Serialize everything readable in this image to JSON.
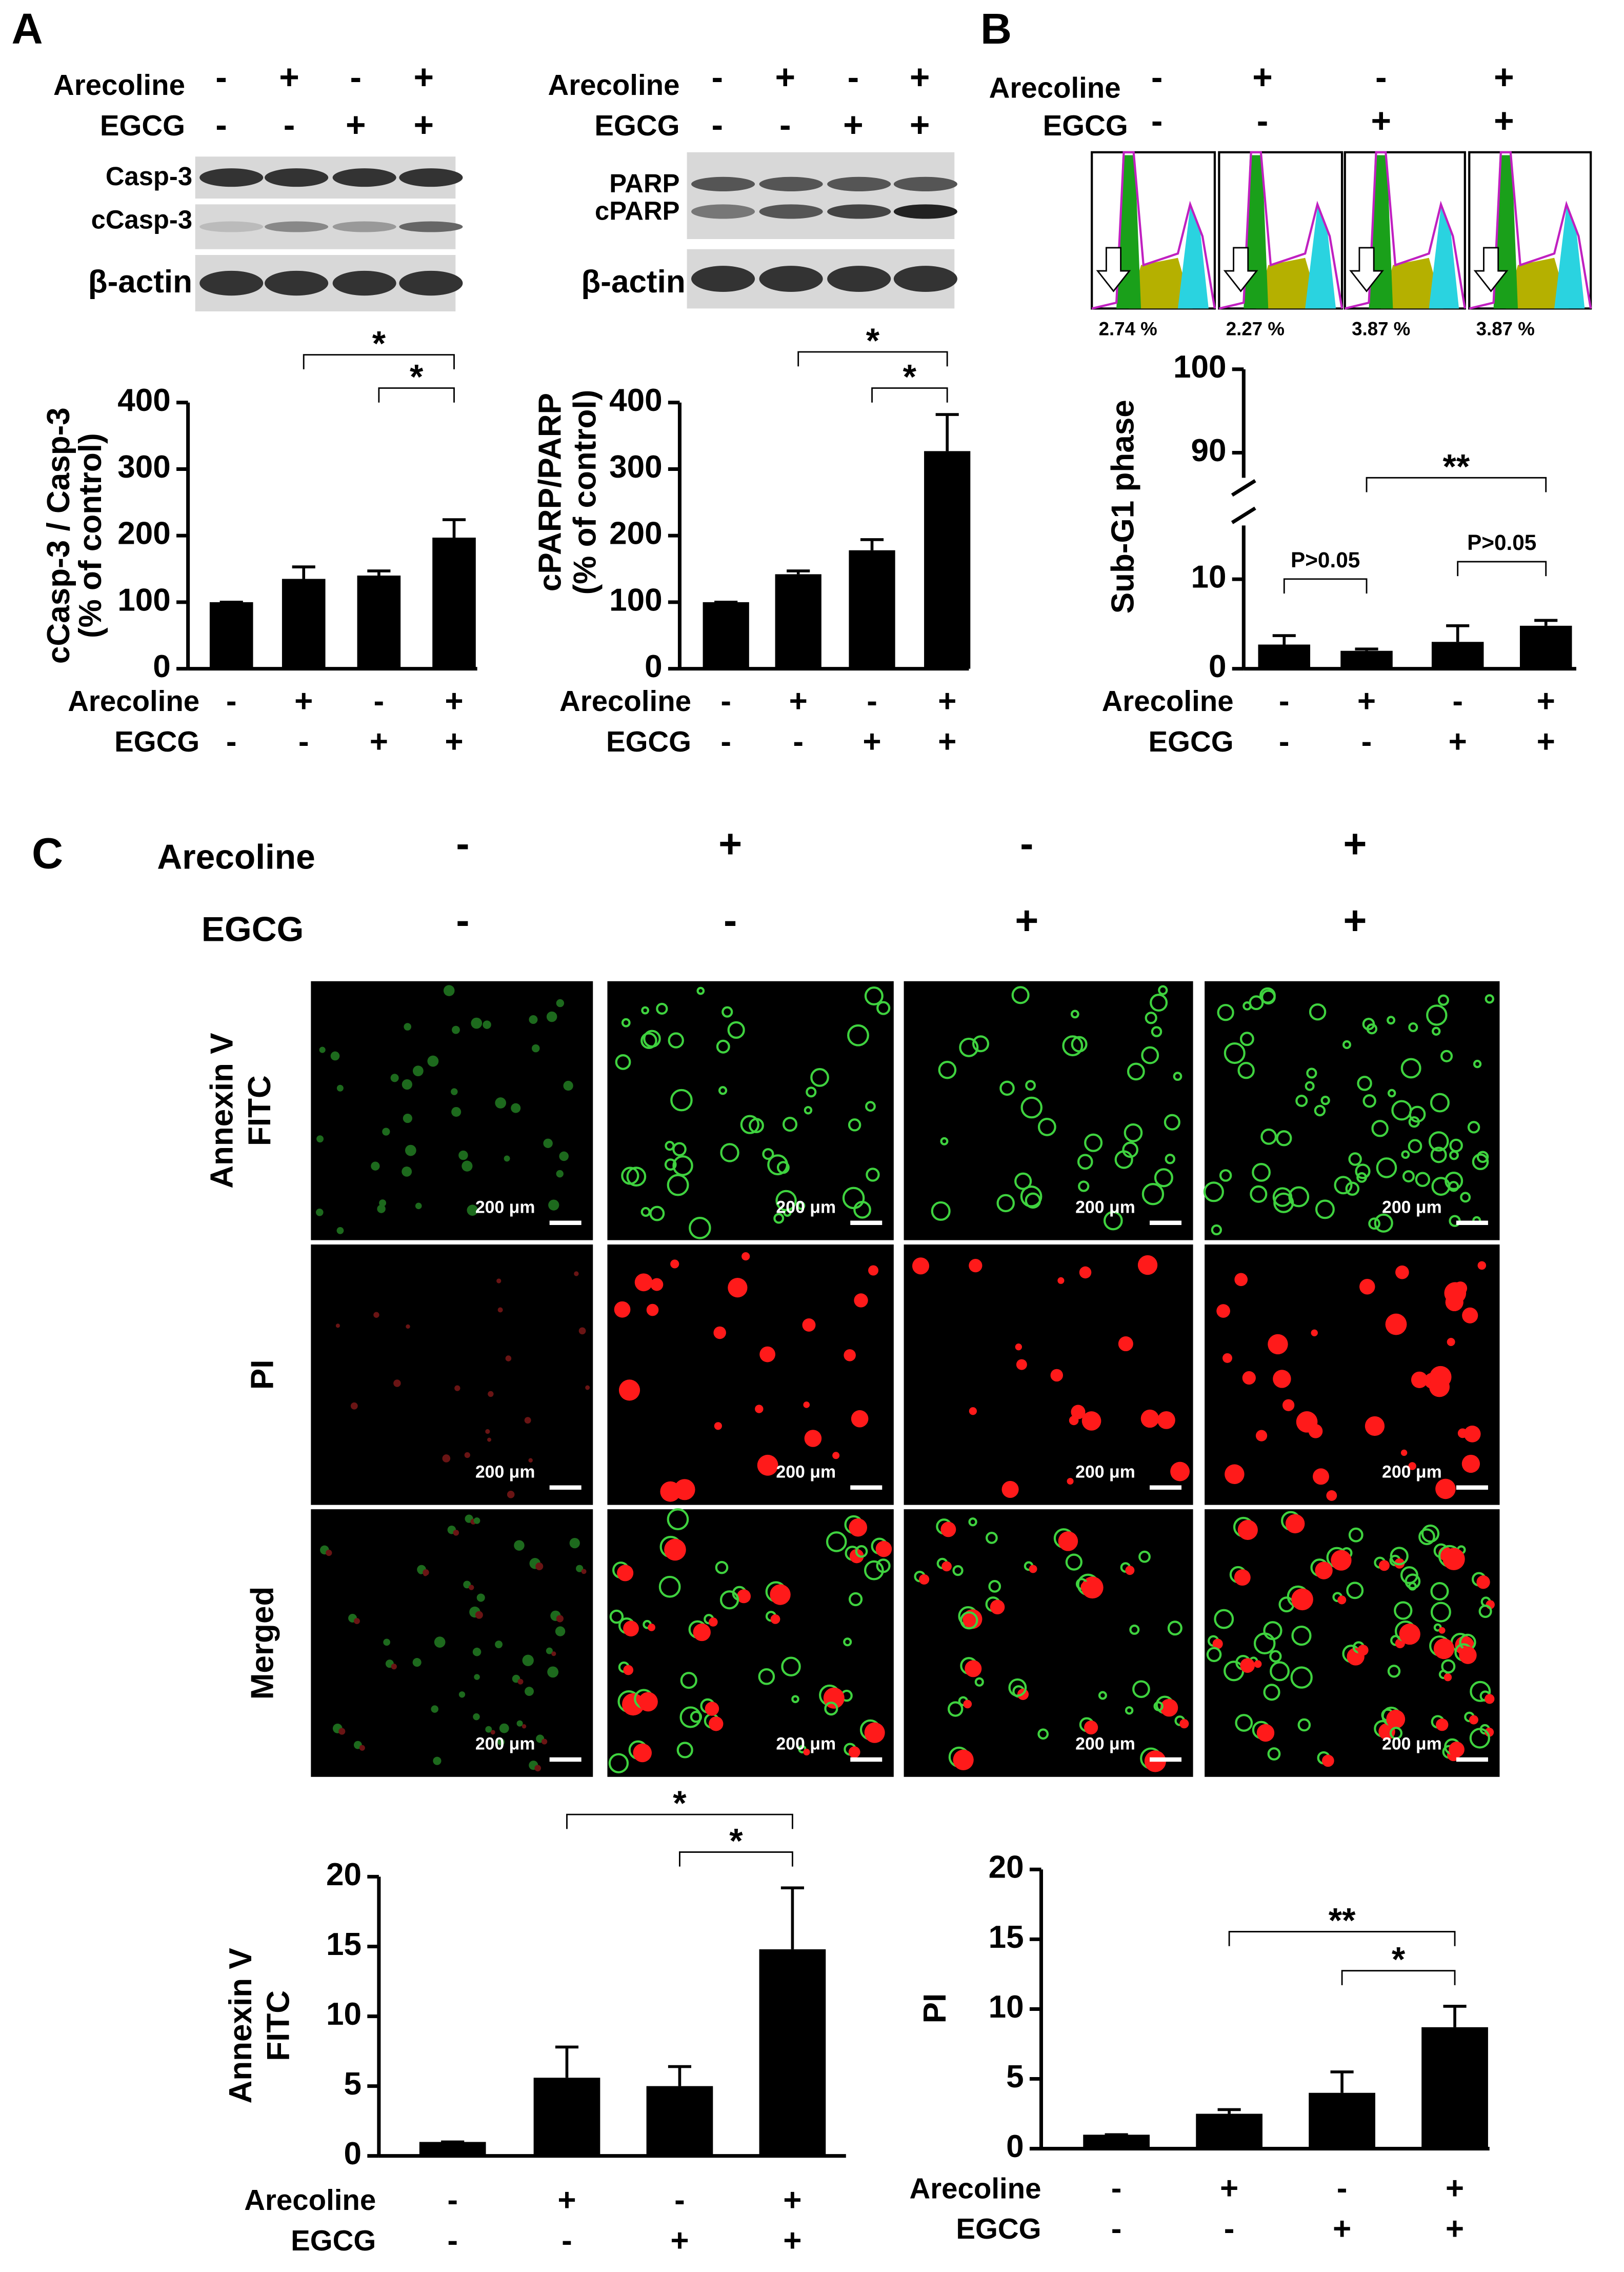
{
  "chart_data": [
    {
      "type": "bar",
      "ylabel": [
        "cCasp-3 / Casp-3",
        "(% of control)"
      ],
      "values": [
        100,
        135,
        140,
        197
      ],
      "errors": [
        0,
        18,
        7,
        27
      ],
      "color": "#000000",
      "ylim": [
        0,
        400
      ],
      "yticks": [
        0,
        100,
        200,
        300,
        400
      ],
      "rows": [
        {
          "name": "Arecoline",
          "signs": [
            "-",
            "+",
            "-",
            "+"
          ]
        },
        {
          "name": "EGCG",
          "signs": [
            "-",
            "-",
            "+",
            "+"
          ]
        }
      ],
      "brackets": [
        {
          "from": 1,
          "to": 3,
          "label": "*"
        },
        {
          "from": 2,
          "to": 3,
          "label": "*"
        }
      ]
    },
    {
      "type": "bar",
      "ylabel": [
        "cPARP/PARP",
        "(% of control)"
      ],
      "values": [
        100,
        142,
        178,
        327
      ],
      "errors": [
        0,
        5,
        16,
        55
      ],
      "color": "#000000",
      "ylim": [
        0,
        400
      ],
      "yticks": [
        0,
        100,
        200,
        300,
        400
      ],
      "rows": [
        {
          "name": "Arecoline",
          "signs": [
            "-",
            "+",
            "-",
            "+"
          ]
        },
        {
          "name": "EGCG",
          "signs": [
            "-",
            "-",
            "+",
            "+"
          ]
        }
      ],
      "brackets": [
        {
          "from": 1,
          "to": 3,
          "label": "*"
        },
        {
          "from": 2,
          "to": 3,
          "label": "*"
        }
      ]
    },
    {
      "type": "bar",
      "ylabel": [
        "Sub-G1 phase"
      ],
      "values": [
        2.7,
        2.0,
        3.0,
        4.8
      ],
      "errors": [
        1.0,
        0.2,
        1.8,
        0.6
      ],
      "color": "#000000",
      "ylim": [
        0,
        100
      ],
      "yticks": [
        0,
        10,
        90,
        100
      ],
      "axis_break": [
        16,
        87
      ],
      "rows": [
        {
          "name": "Arecoline",
          "signs": [
            "-",
            "+",
            "-",
            "+"
          ]
        },
        {
          "name": "EGCG",
          "signs": [
            "-",
            "-",
            "+",
            "+"
          ]
        }
      ],
      "brackets": [
        {
          "from": 0,
          "to": 1,
          "label": "P>0.05"
        },
        {
          "from": 2,
          "to": 3,
          "label": "P>0.05"
        },
        {
          "from": 1,
          "to": 3,
          "label": "**"
        }
      ]
    },
    {
      "type": "bar",
      "ylabel": [
        "Annexin V",
        "FITC"
      ],
      "values": [
        1,
        5.6,
        5.0,
        14.8
      ],
      "errors": [
        0,
        2.2,
        1.4,
        4.4
      ],
      "color": "#000000",
      "ylim": [
        0,
        20
      ],
      "yticks": [
        0,
        5,
        10,
        15,
        20
      ],
      "rows": [
        {
          "name": "Arecoline",
          "signs": [
            "-",
            "+",
            "-",
            "+"
          ]
        },
        {
          "name": "EGCG",
          "signs": [
            "-",
            "-",
            "+",
            "+"
          ]
        }
      ],
      "brackets": [
        {
          "from": 1,
          "to": 3,
          "label": "*"
        },
        {
          "from": 2,
          "to": 3,
          "label": "*"
        }
      ]
    },
    {
      "type": "bar",
      "ylabel": [
        "PI"
      ],
      "values": [
        1,
        2.5,
        4.0,
        8.7
      ],
      "errors": [
        0,
        0.3,
        1.5,
        1.5
      ],
      "color": "#000000",
      "ylim": [
        0,
        20
      ],
      "yticks": [
        0,
        5,
        10,
        15,
        20
      ],
      "rows": [
        {
          "name": "Arecoline",
          "signs": [
            "-",
            "+",
            "-",
            "+"
          ]
        },
        {
          "name": "EGCG",
          "signs": [
            "-",
            "-",
            "+",
            "+"
          ]
        }
      ],
      "brackets": [
        {
          "from": 1,
          "to": 3,
          "label": "**"
        },
        {
          "from": 2,
          "to": 3,
          "label": "*"
        }
      ]
    }
  ],
  "panels": {
    "letters": [
      "A",
      "B",
      "C"
    ],
    "blot1": {
      "rows": [
        {
          "name": "Arecoline",
          "signs": [
            "-",
            "+",
            "-",
            "+"
          ]
        },
        {
          "name": "EGCG",
          "signs": [
            "-",
            "-",
            "+",
            "+"
          ]
        }
      ],
      "bands": [
        "Casp-3",
        "cCasp-3",
        "β-actin"
      ]
    },
    "blot2": {
      "rows": [
        {
          "name": "Arecoline",
          "signs": [
            "-",
            "+",
            "-",
            "+"
          ]
        },
        {
          "name": "EGCG",
          "signs": [
            "-",
            "-",
            "+",
            "+"
          ]
        }
      ],
      "bands": [
        "PARP",
        "cPARP",
        "β-actin"
      ]
    },
    "flow": {
      "rows": [
        {
          "name": "Arecoline",
          "signs": [
            "-",
            "+",
            "-",
            "+"
          ]
        },
        {
          "name": "EGCG",
          "signs": [
            "-",
            "-",
            "+",
            "+"
          ]
        }
      ],
      "labels": [
        "2.74 %",
        "2.27 %",
        "3.87 %",
        "3.87 %"
      ]
    },
    "images": {
      "rows": [
        {
          "name": "Arecoline",
          "signs": [
            "-",
            "+",
            "-",
            "+"
          ]
        },
        {
          "name": "EGCG",
          "signs": [
            "-",
            "-",
            "+",
            "+"
          ]
        }
      ],
      "channels": [
        [
          "Annexin V",
          "FITC"
        ],
        [
          "PI"
        ],
        [
          "Merged"
        ]
      ],
      "scale": "200 μm"
    }
  }
}
